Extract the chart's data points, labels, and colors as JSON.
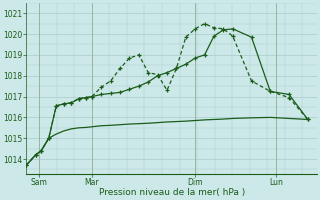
{
  "title": "",
  "xlabel": "Pression niveau de la mer( hPa )",
  "background_color": "#cde8e8",
  "grid_color": "#aacccc",
  "line_color": "#1a5c1a",
  "ylim": [
    1013.3,
    1021.5
  ],
  "yticks": [
    1014,
    1015,
    1016,
    1017,
    1018,
    1019,
    1020,
    1021
  ],
  "xlim": [
    0,
    15.5
  ],
  "x_tick_positions": [
    0.7,
    3.5,
    9.0,
    13.3
  ],
  "x_tick_labels": [
    "Sam",
    "Mar",
    "Dim",
    "Lun"
  ],
  "x_vline_positions": [
    0.7,
    3.5,
    9.0,
    13.3
  ],
  "series1_x": [
    0.0,
    0.5,
    0.8,
    1.2,
    1.6,
    2.0,
    2.4,
    2.8,
    3.2,
    3.5,
    4.0,
    4.5,
    5.0,
    5.5,
    6.0,
    6.5,
    7.0,
    7.5,
    8.0,
    8.5,
    9.0,
    9.5,
    10.0,
    10.5,
    11.0,
    12.0,
    13.0,
    14.0,
    15.0
  ],
  "series1_y": [
    1013.7,
    1014.2,
    1014.4,
    1015.0,
    1015.2,
    1015.35,
    1015.45,
    1015.5,
    1015.52,
    1015.55,
    1015.6,
    1015.62,
    1015.65,
    1015.68,
    1015.7,
    1015.72,
    1015.75,
    1015.78,
    1015.8,
    1015.82,
    1015.85,
    1015.88,
    1015.9,
    1015.92,
    1015.95,
    1015.98,
    1016.0,
    1015.95,
    1015.9
  ],
  "series2_x": [
    0.0,
    0.5,
    0.8,
    1.2,
    1.6,
    2.0,
    2.4,
    2.8,
    3.2,
    3.5,
    4.0,
    4.5,
    5.0,
    5.5,
    6.0,
    6.5,
    7.0,
    7.5,
    8.0,
    8.5,
    9.0,
    9.5,
    10.0,
    10.5,
    11.0,
    12.0,
    13.0,
    14.0,
    15.0
  ],
  "series2_y": [
    1013.7,
    1014.2,
    1014.4,
    1015.0,
    1016.55,
    1016.65,
    1016.7,
    1016.9,
    1016.95,
    1017.0,
    1017.1,
    1017.15,
    1017.2,
    1017.35,
    1017.5,
    1017.7,
    1018.0,
    1018.15,
    1018.35,
    1018.55,
    1018.85,
    1019.0,
    1019.9,
    1020.2,
    1020.25,
    1019.85,
    1017.25,
    1017.1,
    1015.9
  ],
  "series3_x": [
    0.0,
    0.5,
    0.8,
    1.2,
    1.6,
    2.0,
    2.4,
    2.8,
    3.2,
    3.5,
    4.0,
    4.5,
    5.0,
    5.5,
    6.0,
    6.5,
    7.0,
    7.5,
    8.0,
    8.5,
    9.0,
    9.5,
    10.0,
    10.5,
    11.0,
    12.0,
    13.0,
    14.0,
    15.0
  ],
  "series3_y": [
    1013.7,
    1014.2,
    1014.4,
    1015.0,
    1016.55,
    1016.65,
    1016.7,
    1016.9,
    1016.95,
    1017.0,
    1017.45,
    1017.75,
    1018.35,
    1018.85,
    1019.0,
    1018.15,
    1018.05,
    1017.3,
    1018.35,
    1019.85,
    1020.25,
    1020.5,
    1020.3,
    1020.25,
    1019.9,
    1017.75,
    1017.25,
    1016.95,
    1015.9
  ]
}
